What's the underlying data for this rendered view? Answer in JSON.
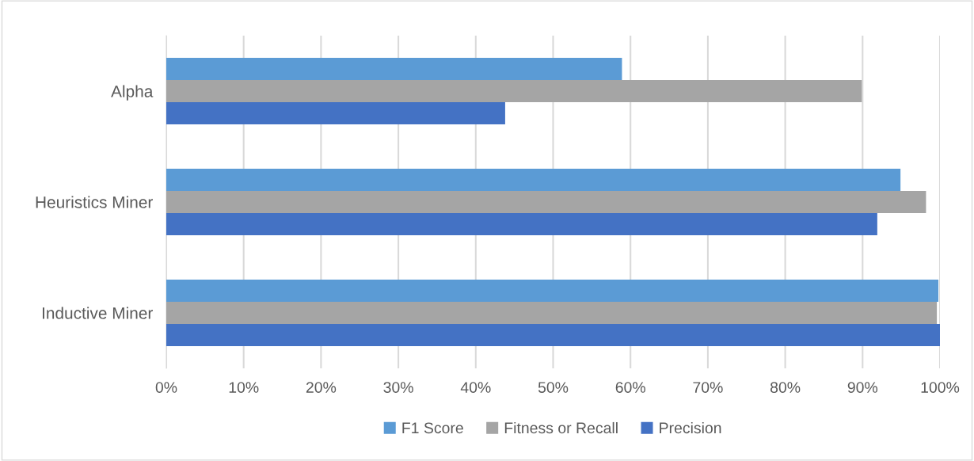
{
  "chart_data": {
    "type": "bar",
    "orientation": "horizontal",
    "categories": [
      "Alpha",
      "Heuristics Miner",
      "Inductive Miner"
    ],
    "series": [
      {
        "name": "F1 Score",
        "color": "#5b9bd5",
        "values": [
          58.9,
          94.9,
          99.8
        ]
      },
      {
        "name": "Fitness or Recall",
        "color": "#a5a5a5",
        "values": [
          89.9,
          98.2,
          99.6
        ]
      },
      {
        "name": "Precision",
        "color": "#4472c4",
        "values": [
          43.8,
          91.9,
          100
        ]
      }
    ],
    "xlim": [
      0,
      100
    ],
    "xticks": [
      {
        "value": 0,
        "label": "0%"
      },
      {
        "value": 10,
        "label": "10%"
      },
      {
        "value": 20,
        "label": "20%"
      },
      {
        "value": 30,
        "label": "30%"
      },
      {
        "value": 40,
        "label": "40%"
      },
      {
        "value": 50,
        "label": "50%"
      },
      {
        "value": 60,
        "label": "60%"
      },
      {
        "value": 70,
        "label": "70%"
      },
      {
        "value": 80,
        "label": "80%"
      },
      {
        "value": 90,
        "label": "90%"
      },
      {
        "value": 100,
        "label": "100%"
      }
    ],
    "grid": "x",
    "legend": "bottom"
  }
}
